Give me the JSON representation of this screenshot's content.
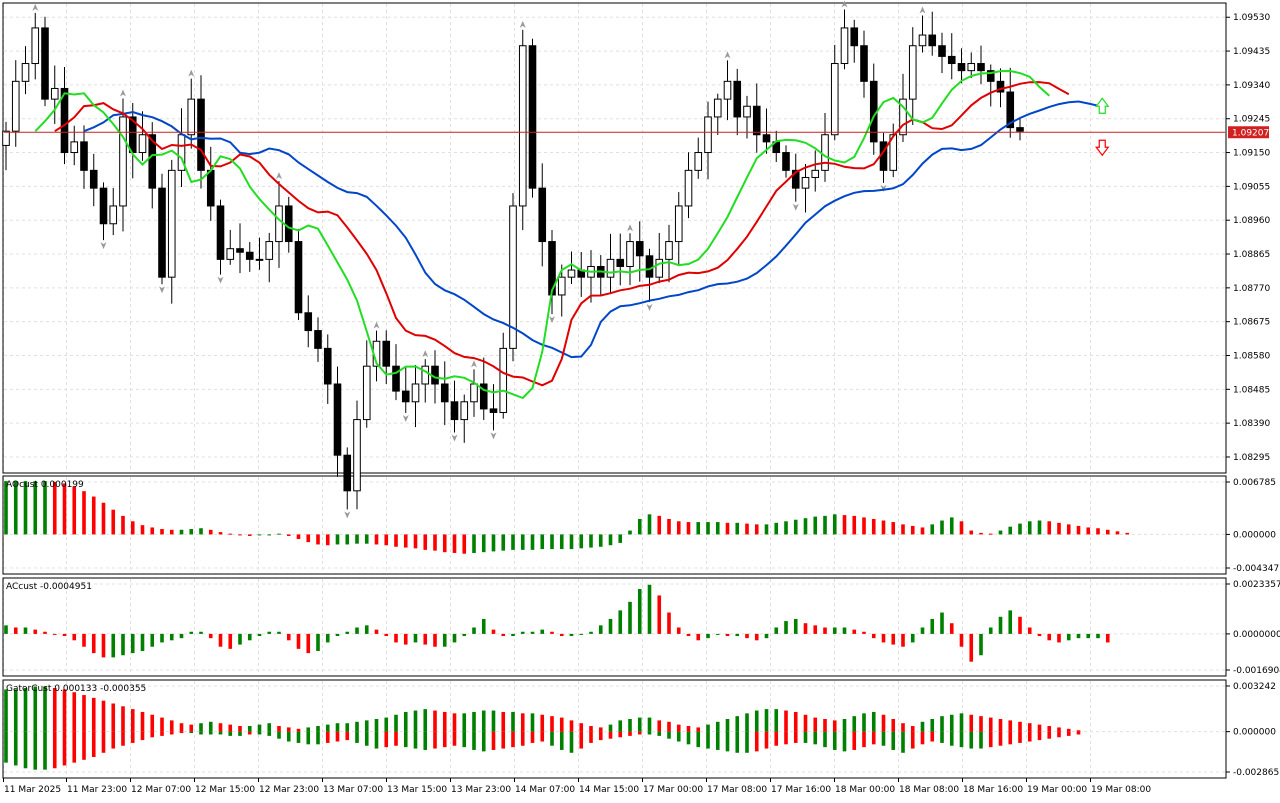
{
  "colors": {
    "background": "#ffffff",
    "grid": "#e0e0e0",
    "bull": "#008000",
    "bear": "#ff0000",
    "candle": "#000000",
    "jaw": "#0047c8",
    "teeth": "#e00000",
    "lips": "#22dd22",
    "fractal": "#9a9a9a",
    "price_line": "#cc2020",
    "price_badge": "#d02020"
  },
  "price_panel": {
    "current_price": "1.09207",
    "current_price_value": 1.09207,
    "ylim": [
      1.0825,
      1.0957
    ],
    "y_ticks": [
      "1.09530",
      "1.09435",
      "1.09340",
      "1.09245",
      "1.09150",
      "1.09055",
      "1.08960",
      "1.08865",
      "1.08770",
      "1.08675",
      "1.08580",
      "1.08485",
      "1.08390",
      "1.08295"
    ],
    "signal_up_icon": "arrow-up-icon",
    "signal_down_icon": "arrow-down-icon"
  },
  "indicators": {
    "ao": {
      "label": "AOcust 0.000199",
      "y_ticks": [
        "0.006785",
        "0.000000",
        "-0.004347"
      ],
      "ylim": [
        -0.004347,
        0.006785
      ]
    },
    "ac": {
      "label": "ACcust -0.0004951",
      "y_ticks": [
        "0.0023357",
        "0.0000000",
        "-0.0016904"
      ],
      "ylim": [
        -0.0016904,
        0.0023357
      ]
    },
    "gator": {
      "label": "GatorCust 0.000133 -0.000355",
      "y_ticks": [
        "0.003242",
        "0.000000",
        "-0.002865"
      ],
      "ylim": [
        -0.002865,
        0.003242
      ]
    }
  },
  "time_axis": {
    "labels": [
      "11 Mar 2025",
      "11 Mar 23:00",
      "12 Mar 07:00",
      "12 Mar 15:00",
      "12 Mar 23:00",
      "13 Mar 07:00",
      "13 Mar 15:00",
      "13 Mar 23:00",
      "14 Mar 07:00",
      "14 Mar 15:00",
      "17 Mar 00:00",
      "17 Mar 08:00",
      "17 Mar 16:00",
      "18 Mar 00:00",
      "18 Mar 08:00",
      "18 Mar 16:00",
      "19 Mar 00:00",
      "19 Mar 08:00"
    ]
  },
  "chart_data": [
    {
      "type": "candlestick",
      "title": "",
      "series": [
        {
          "name": "",
          "kind": "ohlc",
          "values": [
            1.0921,
            1.0935,
            1.094,
            1.095,
            1.093,
            1.0933,
            1.0915,
            1.0918,
            1.091,
            1.0905,
            1.0895,
            1.09,
            1.0925,
            1.0915,
            1.092,
            1.0905,
            1.088,
            1.091,
            1.092,
            1.093,
            1.091,
            1.09,
            1.0885,
            1.0888,
            1.0887,
            1.0885,
            1.0885,
            1.089,
            1.09,
            1.089,
            1.087,
            1.0865,
            1.086,
            1.085,
            1.083,
            1.082,
            1.084,
            1.0855,
            1.0862,
            1.0855,
            1.0848,
            1.0845,
            1.085,
            1.0855,
            1.085,
            1.0845,
            1.084,
            1.0845,
            1.085,
            1.0843,
            1.0842,
            1.086,
            1.09,
            1.0945,
            1.0905,
            1.089,
            1.0875,
            1.088,
            1.0882,
            1.088,
            1.0883,
            1.088,
            1.0885,
            1.0883,
            1.089,
            1.0886,
            1.088,
            1.0885,
            1.089,
            1.09,
            1.091,
            1.0915,
            1.0925,
            1.093,
            1.0935,
            1.0925,
            1.0928,
            1.092,
            1.0918,
            1.0915,
            1.091,
            1.0905,
            1.0908,
            1.091,
            1.092,
            1.094,
            1.095,
            1.0945,
            1.0935,
            1.0918,
            1.091,
            1.092,
            1.093,
            1.0945,
            1.0948,
            1.0945,
            1.0942,
            1.094,
            1.0938,
            1.094,
            1.0938,
            1.0935,
            1.0932,
            1.0922,
            1.0921
          ]
        }
      ]
    },
    {
      "type": "bar",
      "title": "AOcust",
      "series": [
        {
          "name": "AOcust",
          "values": [
            0.0069,
            0.0069,
            0.0069,
            0.0069,
            0.0069,
            0.0068,
            0.0066,
            0.0062,
            0.0056,
            0.0049,
            0.0041,
            0.0032,
            0.0024,
            0.0017,
            0.0012,
            0.0009,
            0.0007,
            0.0006,
            0.0006,
            0.0007,
            0.0008,
            0.0006,
            0.0003,
            0.0001,
            -0.0001,
            -0.0002,
            -0.0001,
            0.0,
            0.0001,
            -0.0002,
            -0.0006,
            -0.001,
            -0.0013,
            -0.0014,
            -0.0013,
            -0.0013,
            -0.0012,
            -0.0012,
            -0.0013,
            -0.0014,
            -0.0016,
            -0.0017,
            -0.0018,
            -0.002,
            -0.0021,
            -0.0023,
            -0.0024,
            -0.0025,
            -0.0024,
            -0.0023,
            -0.0022,
            -0.0021,
            -0.002,
            -0.002,
            -0.002,
            -0.0019,
            -0.0019,
            -0.0019,
            -0.0019,
            -0.0018,
            -0.0017,
            -0.0016,
            -0.0014,
            -0.0011,
            0.0005,
            0.002,
            0.0026,
            0.0024,
            0.002,
            0.0017,
            0.0016,
            0.0016,
            0.0016,
            0.0016,
            0.0015,
            0.0015,
            0.0014,
            0.0013,
            0.0013,
            0.0015,
            0.0017,
            0.0019,
            0.0021,
            0.0023,
            0.0024,
            0.0026,
            0.0025,
            0.0024,
            0.0022,
            0.002,
            0.0018,
            0.0016,
            0.0013,
            0.0011,
            0.0009,
            0.0013,
            0.0018,
            0.0022,
            0.0017,
            0.0005,
            0.0002,
            0.0001,
            0.0005,
            0.001,
            0.0014,
            0.0017,
            0.0018,
            0.0017,
            0.0015,
            0.0013,
            0.0011,
            0.0009,
            0.0008,
            0.0006,
            0.0004,
            0.0002
          ]
        }
      ]
    },
    {
      "type": "bar",
      "title": "ACcust",
      "series": [
        {
          "name": "ACcust",
          "values": [
            0.0004,
            0.0003,
            0.0003,
            0.0002,
            0.0001,
            0.0,
            -0.0001,
            -0.0003,
            -0.0006,
            -0.0009,
            -0.0011,
            -0.0011,
            -0.001,
            -0.0009,
            -0.0008,
            -0.0006,
            -0.0004,
            -0.0003,
            -0.0002,
            0.0001,
            0.0001,
            -0.0002,
            -0.0006,
            -0.0007,
            -0.0005,
            -0.0003,
            -0.0001,
            0.0001,
            0.0001,
            -0.0003,
            -0.0007,
            -0.0009,
            -0.0008,
            -0.0004,
            -0.0001,
            0.0001,
            0.0003,
            0.0004,
            0.0002,
            -0.0001,
            -0.0004,
            -0.0005,
            -0.0004,
            -0.0005,
            -0.0006,
            -0.0006,
            -0.0004,
            -0.0001,
            0.0003,
            0.0007,
            0.0002,
            -0.0001,
            -0.0001,
            0.0001,
            0.0001,
            0.0002,
            0.0001,
            -0.0001,
            -0.0001,
            0.0,
            0.0001,
            0.0004,
            0.0007,
            0.0011,
            0.0015,
            0.0021,
            0.0023,
            0.0018,
            0.001,
            0.0003,
            -0.0001,
            -0.0003,
            -0.0002,
            0.0,
            -0.0001,
            -0.0001,
            -0.0002,
            -0.0003,
            -0.0002,
            0.0003,
            0.0006,
            0.0007,
            0.0005,
            0.0004,
            0.0003,
            0.0003,
            0.0003,
            0.0002,
            0.0001,
            -0.0002,
            -0.0004,
            -0.0005,
            -0.0006,
            -0.0004,
            0.0003,
            0.0007,
            0.001,
            0.0005,
            -0.0006,
            -0.0013,
            -0.001,
            0.0003,
            0.0008,
            0.0011,
            0.0008,
            0.0003,
            -0.0001,
            -0.0003,
            -0.0004,
            -0.0003,
            -0.0002,
            -0.0002,
            -0.0002,
            -0.0004
          ]
        }
      ]
    },
    {
      "type": "bar",
      "title": "GatorCust",
      "series": [
        {
          "name": "GatorCust upper",
          "values": [
            0.003,
            0.003,
            0.0031,
            0.0032,
            0.0032,
            0.0031,
            0.003,
            0.0028,
            0.0026,
            0.0024,
            0.0022,
            0.002,
            0.0018,
            0.0016,
            0.0014,
            0.0012,
            0.001,
            0.0008,
            0.0006,
            0.0005,
            0.0006,
            0.0007,
            0.0006,
            0.0005,
            0.0004,
            0.0004,
            0.0005,
            0.0006,
            0.0004,
            0.0003,
            0.0002,
            0.0003,
            0.0004,
            0.0005,
            0.0006,
            0.0006,
            0.0007,
            0.0008,
            0.0009,
            0.001,
            0.0012,
            0.0014,
            0.0015,
            0.0016,
            0.0015,
            0.0014,
            0.0013,
            0.0013,
            0.0014,
            0.0015,
            0.0015,
            0.0014,
            0.0014,
            0.0013,
            0.0013,
            0.0012,
            0.0011,
            0.001,
            0.0008,
            0.0006,
            0.0004,
            0.0003,
            0.0005,
            0.0008,
            0.0009,
            0.001,
            0.001,
            0.0008,
            0.0007,
            0.0005,
            0.0004,
            0.0003,
            0.0005,
            0.0007,
            0.0009,
            0.0011,
            0.0013,
            0.0015,
            0.0016,
            0.0016,
            0.0015,
            0.0014,
            0.0012,
            0.001,
            0.0009,
            0.0008,
            0.0009,
            0.0011,
            0.0013,
            0.0014,
            0.0012,
            0.0009,
            0.0006,
            0.0004,
            0.0007,
            0.0009,
            0.0011,
            0.0012,
            0.0013,
            0.0012,
            0.0011,
            0.001,
            0.0009,
            0.0008,
            0.0007,
            0.0006,
            0.0005,
            0.0004,
            0.0003,
            0.0002,
            0.0001
          ]
        },
        {
          "name": "GatorCust lower",
          "values": [
            -0.0022,
            -0.0024,
            -0.0026,
            -0.0027,
            -0.0027,
            -0.0026,
            -0.0024,
            -0.0022,
            -0.002,
            -0.0018,
            -0.0015,
            -0.0012,
            -0.001,
            -0.0008,
            -0.0006,
            -0.0004,
            -0.0003,
            -0.0002,
            -0.0001,
            -0.0001,
            -0.0002,
            -0.0002,
            -0.0002,
            -0.0003,
            -0.0003,
            -0.0002,
            -0.0002,
            -0.0003,
            -0.0005,
            -0.0007,
            -0.0008,
            -0.0009,
            -0.0009,
            -0.0008,
            -0.0007,
            -0.0006,
            -0.0008,
            -0.001,
            -0.0012,
            -0.0011,
            -0.001,
            -0.0011,
            -0.0012,
            -0.0013,
            -0.0012,
            -0.0011,
            -0.001,
            -0.0011,
            -0.0013,
            -0.0014,
            -0.0013,
            -0.0012,
            -0.0011,
            -0.001,
            -0.0008,
            -0.0007,
            -0.001,
            -0.0013,
            -0.0015,
            -0.0012,
            -0.0008,
            -0.0006,
            -0.0005,
            -0.0004,
            -0.0003,
            -0.0002,
            -0.0002,
            -0.0003,
            -0.0005,
            -0.0007,
            -0.0009,
            -0.0011,
            -0.0012,
            -0.0013,
            -0.0014,
            -0.0015,
            -0.0015,
            -0.0014,
            -0.0012,
            -0.001,
            -0.0009,
            -0.0008,
            -0.0008,
            -0.0009,
            -0.0011,
            -0.0013,
            -0.0014,
            -0.0013,
            -0.0011,
            -0.0009,
            -0.001,
            -0.0013,
            -0.0015,
            -0.0012,
            -0.0009,
            -0.0007,
            -0.0008,
            -0.001,
            -0.0011,
            -0.0012,
            -0.0012,
            -0.0011,
            -0.001,
            -0.0009,
            -0.0008,
            -0.0007,
            -0.0006,
            -0.0005,
            -0.0004,
            -0.0003,
            -0.0002
          ]
        }
      ]
    }
  ]
}
